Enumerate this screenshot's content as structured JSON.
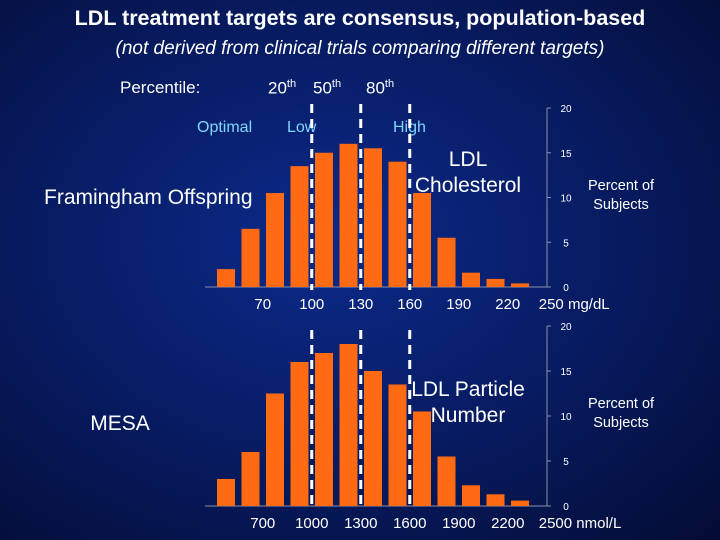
{
  "title": "LDL treatment targets are consensus, population-based",
  "subtitle": "(not derived from clinical trials comparing different targets)",
  "percentile": {
    "label": "Percentile:",
    "p20": "20",
    "p50": "50",
    "p80": "80",
    "suffix": "th"
  },
  "categories": {
    "optimal": "Optimal",
    "low": "Low",
    "high": "High"
  },
  "colors": {
    "bar": "#ff6a13",
    "background": "#0a2275",
    "dashes": "#ffffff"
  },
  "chart_data": [
    {
      "type": "bar",
      "title": "LDL Cholesterol",
      "row_label": "Framingham Offspring",
      "ylabel": "Percent of Subjects",
      "xlabel": "mg/dL",
      "x_tick_labels": [
        "70",
        "100",
        "130",
        "160",
        "190",
        "220",
        "250 mg/dL"
      ],
      "x_tick_values": [
        70,
        100,
        130,
        160,
        190,
        220,
        250
      ],
      "y_ticks": [
        "0",
        "5",
        "10",
        "15",
        "20"
      ],
      "ylim": [
        0,
        20
      ],
      "bin_centers": [
        55,
        70,
        85,
        100,
        115,
        130,
        145,
        160,
        175,
        190,
        205,
        220,
        235
      ],
      "values": [
        2.0,
        6.5,
        10.5,
        13.5,
        15.0,
        16.0,
        15.5,
        14.0,
        10.5,
        5.5,
        1.6,
        0.9,
        0.4
      ],
      "thresholds": [
        100,
        130,
        160
      ]
    },
    {
      "type": "bar",
      "title": "LDL Particle Number",
      "row_label": "MESA",
      "ylabel": "Percent of Subjects",
      "xlabel": "nmol/L",
      "x_tick_labels": [
        "700",
        "1000",
        "1300",
        "1600",
        "1900",
        "2200",
        "2500 nmol/L"
      ],
      "x_tick_values": [
        700,
        1000,
        1300,
        1600,
        1900,
        2200,
        2500
      ],
      "y_ticks": [
        "0",
        "5",
        "10",
        "15",
        "20"
      ],
      "ylim": [
        0,
        20
      ],
      "bin_centers": [
        550,
        700,
        850,
        1000,
        1150,
        1300,
        1450,
        1600,
        1750,
        1900,
        2050,
        2200,
        2350
      ],
      "values": [
        3.0,
        6.0,
        12.5,
        16.0,
        17.0,
        18.0,
        15.0,
        13.5,
        10.5,
        5.5,
        2.3,
        1.3,
        0.6
      ],
      "thresholds": [
        1000,
        1300,
        1600
      ]
    }
  ]
}
